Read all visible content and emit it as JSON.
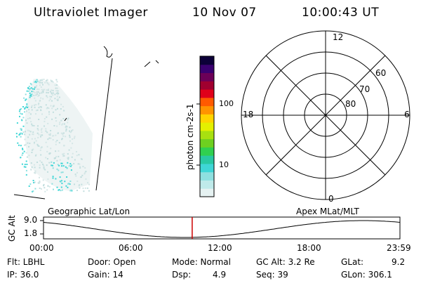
{
  "header": {
    "instrument": "Ultraviolet Imager",
    "date": "10 Nov 07",
    "time": "10:00:43 UT"
  },
  "colorbar": {
    "unit_label": "photon cm-2s-1",
    "ticks": [
      "100",
      "10"
    ],
    "colors": [
      "#e6f2f2",
      "#bfeaea",
      "#8ee0e0",
      "#3fd6d6",
      "#29c9a3",
      "#30d050",
      "#6ed020",
      "#a8e010",
      "#e4f000",
      "#ffd400",
      "#ff9400",
      "#ff5a00",
      "#e0001a",
      "#a00030",
      "#6c0058",
      "#3a0070",
      "#0c0038"
    ]
  },
  "polar": {
    "mlt_labels": [
      "12",
      "6",
      "18",
      "0"
    ],
    "lat_labels": [
      "60",
      "70",
      "80"
    ]
  },
  "timeline": {
    "left_caption": "Geographic Lat/Lon",
    "right_caption": "Apex  MLat/MLT",
    "y_label": "GC Alt",
    "y_ticks": [
      "9.0",
      "1.8"
    ],
    "x_ticks": [
      "00:00",
      "06:00",
      "12:00",
      "18:00",
      "23:59"
    ],
    "current_time_hours": 10.01
  },
  "status": {
    "flt": "Flt: LBHL",
    "ip": "IP: 36.0",
    "door": "Door: Open",
    "gain": "Gain: 14",
    "mode": "Mode: Normal",
    "dsp_label": "Dsp:",
    "dsp_value": "4.9",
    "gc_alt": "GC Alt: 3.2 Re",
    "seq": "Seq: 39",
    "glat_label": "GLat:",
    "glat_value": "9.2",
    "glon": "GLon: 306.1"
  }
}
